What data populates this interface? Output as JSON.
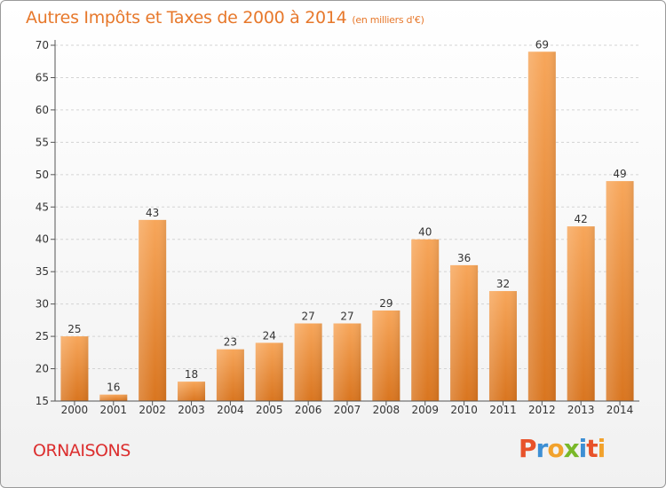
{
  "title": "Autres Impôts et Taxes de 2000 à 2014",
  "subtitle": "(en milliers d'€)",
  "commune": "ORNAISONS",
  "brand": {
    "name": "Proxiti",
    "letters": [
      "P",
      "r",
      "o",
      "x",
      "i",
      "t",
      "i"
    ],
    "colors": [
      "#e8522a",
      "#3d8fd4",
      "#f2a22c",
      "#7ab829",
      "#3d8fd4",
      "#e8522a",
      "#f2a22c"
    ]
  },
  "colors": {
    "title": "#e7782b",
    "commune": "#dc2f2f",
    "bar_top": "#f7a65a",
    "bar_bottom": "#d9751f",
    "grid": "#d4d4d4",
    "axis": "#555555",
    "text": "#333333"
  },
  "chart_data": {
    "type": "bar",
    "title": "Autres Impôts et Taxes de 2000 à 2014",
    "subtitle": "(en milliers d'€)",
    "xlabel": "",
    "ylabel": "",
    "categories": [
      "2000",
      "2001",
      "2002",
      "2003",
      "2004",
      "2005",
      "2006",
      "2007",
      "2008",
      "2009",
      "2010",
      "2011",
      "2012",
      "2013",
      "2014"
    ],
    "values": [
      25,
      16,
      43,
      18,
      23,
      24,
      27,
      27,
      29,
      40,
      36,
      32,
      69,
      42,
      49
    ],
    "ylim": [
      15,
      70
    ],
    "yticks": [
      15,
      20,
      25,
      30,
      35,
      40,
      45,
      50,
      55,
      60,
      65,
      70
    ],
    "grid": "horizontal dashed",
    "legend": "none"
  }
}
